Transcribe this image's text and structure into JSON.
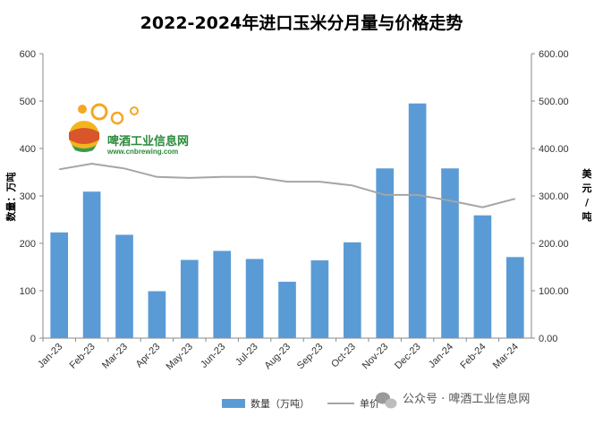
{
  "chart_data": {
    "type": "bar+line",
    "title": "2022-2024年进口玉米分月量与价格走势",
    "categories": [
      "Jan-23",
      "Feb-23",
      "Mar-23",
      "Apr-23",
      "May-23",
      "Jun-23",
      "Jul-23",
      "Aug-23",
      "Sep-23",
      "Oct-23",
      "Nov-23",
      "Dec-23",
      "Jan-24",
      "Feb-24",
      "Mar-24"
    ],
    "series": [
      {
        "name": "数量（万吨）",
        "type": "bar",
        "axis": "left",
        "values": [
          223,
          309,
          218,
          99,
          165,
          184,
          167,
          119,
          164,
          202,
          358,
          495,
          358,
          259,
          171
        ],
        "color": "#5b9bd5"
      },
      {
        "name": "单价",
        "type": "line",
        "axis": "right",
        "values": [
          356,
          368,
          358,
          340,
          338,
          340,
          340,
          330,
          330,
          322,
          302,
          302,
          290,
          276,
          294
        ],
        "color": "#a5a5a5"
      }
    ],
    "ylabel": "数量：万吨",
    "ylabel_right": "美元/吨",
    "ylim": [
      0,
      600
    ],
    "ylim_right": [
      0,
      600
    ],
    "yticks": [
      "0",
      "100",
      "200",
      "300",
      "400",
      "500",
      "600"
    ],
    "yticks_right": [
      "0.00",
      "100.00",
      "200.00",
      "300.00",
      "400.00",
      "500.00",
      "600.00"
    ],
    "grid": false,
    "legend_position": "bottom"
  },
  "logo": {
    "name": "啤酒工业信息网",
    "url": "www.cnbrewing.com"
  },
  "watermark": {
    "icon": "wechat-icon",
    "text": "公众号 · 啤酒工业信息网"
  }
}
